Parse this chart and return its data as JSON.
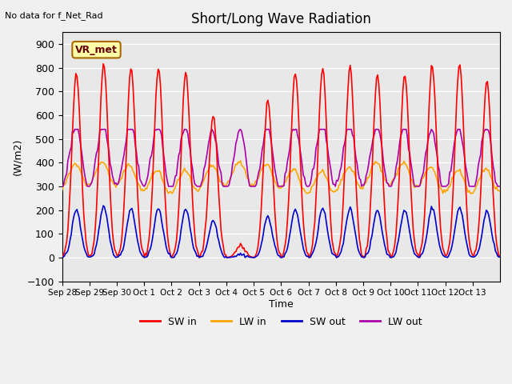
{
  "title": "Short/Long Wave Radiation",
  "xlabel": "Time",
  "ylabel": "(W/m2)",
  "top_left_text": "No data for f_Net_Rad",
  "station_label": "VR_met",
  "ylim": [
    -100,
    950
  ],
  "yticks": [
    -100,
    0,
    100,
    200,
    300,
    400,
    500,
    600,
    700,
    800,
    900
  ],
  "x_tick_labels": [
    "Sep 28",
    "Sep 29",
    "Sep 30",
    "Oct 1",
    "Oct 2",
    "Oct 3",
    "Oct 4",
    "Oct 5",
    "Oct 6",
    "Oct 7",
    "Oct 8",
    "Oct 9",
    "Oct 10",
    "Oct 11",
    "Oct 12",
    "Oct 13"
  ],
  "background_color": "#e8e8e8",
  "colors": {
    "SW_in": "#ff0000",
    "LW_in": "#ffa500",
    "SW_out": "#0000cc",
    "LW_out": "#aa00aa"
  },
  "legend": [
    "SW in",
    "LW in",
    "SW out",
    "LW out"
  ]
}
